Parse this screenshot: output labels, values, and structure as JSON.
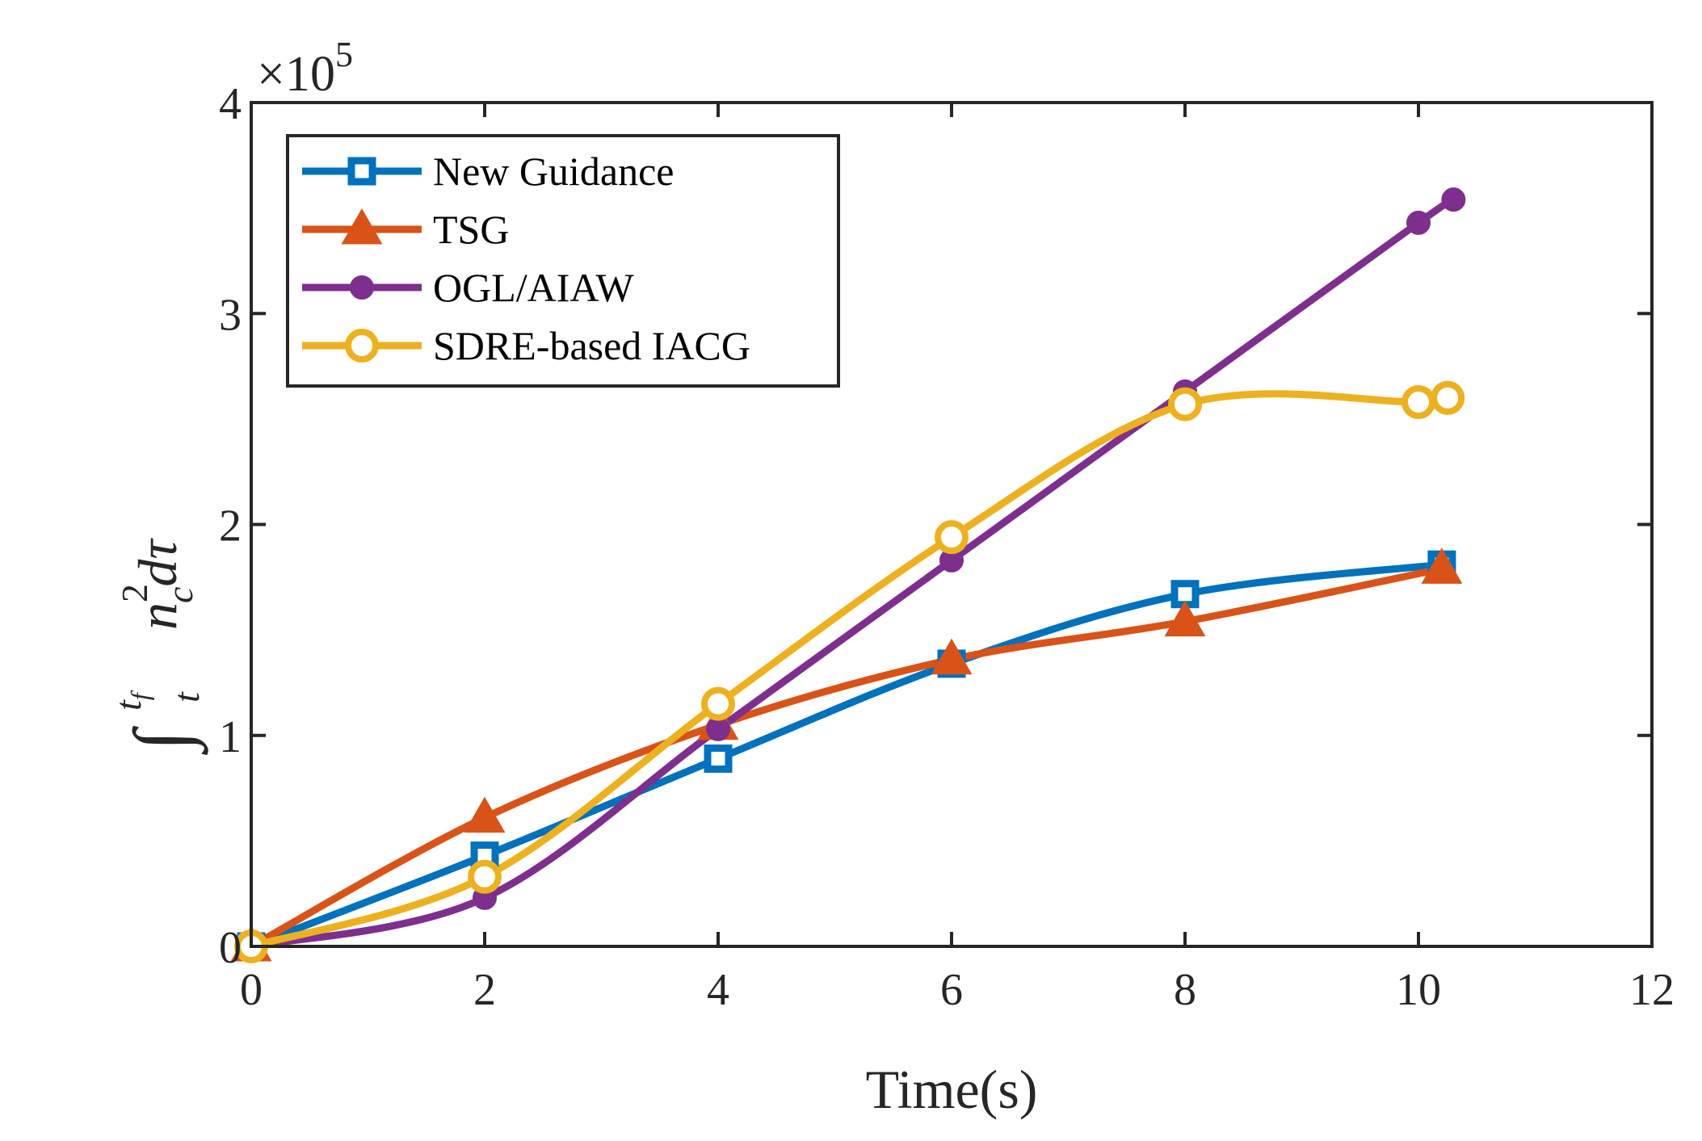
{
  "chart_data": {
    "type": "line",
    "title": "",
    "xlabel": "Time(s)",
    "ylabel_parts": {
      "integral": "∫",
      "lower": "t",
      "upper_base": "t",
      "upper_sub": "f",
      "body_base": "n",
      "body_sup": "2",
      "body_sub": "c",
      "body_tail": "dτ"
    },
    "xlim": [
      0,
      12
    ],
    "ylim": [
      0,
      4
    ],
    "xticks": [
      "0",
      "2",
      "4",
      "6",
      "8",
      "10",
      "12"
    ],
    "yticks": [
      "0",
      "1",
      "2",
      "3",
      "4"
    ],
    "y_multiplier_base": "×10",
    "y_multiplier_exp": "5",
    "legend_position": "top-left",
    "series": [
      {
        "name": "New Guidance",
        "color": "#0072BD",
        "marker": "square",
        "x": [
          0,
          2,
          4,
          6,
          8,
          10.2
        ],
        "y": [
          0,
          0.43,
          0.89,
          1.34,
          1.67,
          1.81
        ]
      },
      {
        "name": "TSG",
        "color": "#D95319",
        "marker": "triangle",
        "x": [
          0,
          2,
          4,
          6,
          8,
          10.2
        ],
        "y": [
          0,
          0.61,
          1.05,
          1.36,
          1.54,
          1.79
        ]
      },
      {
        "name": "OGL/AIAW",
        "color": "#7E2F8E",
        "marker": "filled-circle",
        "x": [
          0,
          2,
          4,
          6,
          8,
          10,
          10.3
        ],
        "y": [
          0,
          0.23,
          1.03,
          1.83,
          2.63,
          3.43,
          3.54
        ]
      },
      {
        "name": "SDRE-based IACG",
        "color": "#EDB120",
        "marker": "open-circle",
        "x": [
          0,
          2,
          4,
          6,
          8,
          10,
          10.25
        ],
        "y": [
          0,
          0.33,
          1.15,
          1.94,
          2.57,
          2.58,
          2.6
        ]
      }
    ]
  }
}
